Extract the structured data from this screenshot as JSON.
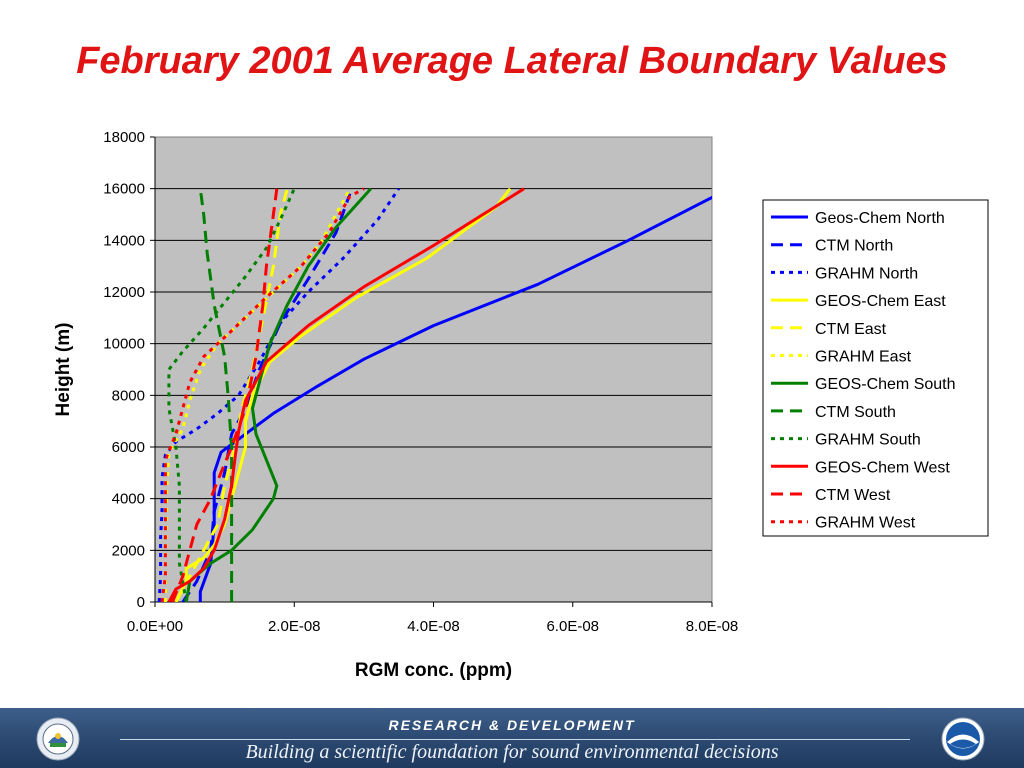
{
  "chart_data": {
    "type": "line",
    "title": "February 2001 Average Lateral Boundary Values",
    "xlabel": "RGM conc. (ppm)",
    "ylabel": "Height (m)",
    "xlim": [
      0,
      8e-08
    ],
    "ylim": [
      0,
      18000
    ],
    "x_ticks": [
      "0.0E+00",
      "2.0E-08",
      "4.0E-08",
      "6.0E-08",
      "8.0E-08"
    ],
    "y_ticks": [
      "0",
      "2000",
      "4000",
      "6000",
      "8000",
      "10000",
      "12000",
      "14000",
      "16000",
      "18000"
    ],
    "grid": "horizontal",
    "legend_position": "right",
    "series": [
      {
        "name": "Geos-Chem North",
        "color": "#0000ff",
        "dash": "solid",
        "points": [
          [
            6.5e-09,
            0
          ],
          [
            6.5e-09,
            400
          ],
          [
            8e-09,
            1500
          ],
          [
            8.5e-09,
            3000
          ],
          [
            8.5e-09,
            5000
          ],
          [
            9.5e-09,
            5800
          ],
          [
            1.3e-08,
            6500
          ],
          [
            1.7e-08,
            7300
          ],
          [
            2.3e-08,
            8300
          ],
          [
            3e-08,
            9400
          ],
          [
            4e-08,
            10700
          ],
          [
            5.5e-08,
            12300
          ],
          [
            6.8e-08,
            14000
          ],
          [
            8.1e-08,
            15800
          ]
        ]
      },
      {
        "name": "CTM North",
        "color": "#0000ff",
        "dash": "dash",
        "points": [
          [
            4e-09,
            0
          ],
          [
            6e-09,
            800
          ],
          [
            8e-09,
            2000
          ],
          [
            8.5e-09,
            3500
          ],
          [
            1e-08,
            5000
          ],
          [
            1.1e-08,
            6500
          ],
          [
            1.3e-08,
            7500
          ],
          [
            1.5e-08,
            9000
          ],
          [
            1.8e-08,
            10800
          ],
          [
            2.2e-08,
            12500
          ],
          [
            2.6e-08,
            14300
          ],
          [
            2.8e-08,
            15800
          ]
        ]
      },
      {
        "name": "GRAHM North",
        "color": "#0000ff",
        "dash": "dot",
        "points": [
          [
            6e-10,
            0
          ],
          [
            8e-10,
            1000
          ],
          [
            8e-10,
            2500
          ],
          [
            1e-09,
            3500
          ],
          [
            1e-09,
            4800
          ],
          [
            1.5e-09,
            5700
          ],
          [
            3e-09,
            6200
          ],
          [
            6e-09,
            6700
          ],
          [
            9e-09,
            7300
          ],
          [
            1.2e-08,
            8000
          ],
          [
            1.5e-08,
            9300
          ],
          [
            1.8e-08,
            10800
          ],
          [
            2.2e-08,
            12000
          ],
          [
            2.7e-08,
            13300
          ],
          [
            3.2e-08,
            14800
          ],
          [
            3.5e-08,
            16000
          ]
        ]
      },
      {
        "name": "GEOS-Chem East",
        "color": "#ffff00",
        "dash": "solid",
        "points": [
          [
            3e-09,
            0
          ],
          [
            4.5e-09,
            800
          ],
          [
            4.5e-09,
            1300
          ],
          [
            7e-09,
            1700
          ],
          [
            8.5e-09,
            2200
          ],
          [
            1e-08,
            3000
          ],
          [
            1.1e-08,
            4000
          ],
          [
            1.2e-08,
            5000
          ],
          [
            1.3e-08,
            6000
          ],
          [
            1.3e-08,
            7000
          ],
          [
            1.4e-08,
            8000
          ],
          [
            1.65e-08,
            9300
          ],
          [
            2.1e-08,
            10300
          ],
          [
            2.9e-08,
            11800
          ],
          [
            3.9e-08,
            13300
          ],
          [
            4.9e-08,
            15300
          ],
          [
            5.1e-08,
            16000
          ]
        ]
      },
      {
        "name": "CTM East",
        "color": "#ffff00",
        "dash": "dash",
        "points": [
          [
            3e-09,
            0
          ],
          [
            5e-09,
            1000
          ],
          [
            7e-09,
            2000
          ],
          [
            9e-09,
            3000
          ],
          [
            1e-08,
            4500
          ],
          [
            1.15e-08,
            6000
          ],
          [
            1.25e-08,
            7500
          ],
          [
            1.4e-08,
            9000
          ],
          [
            1.55e-08,
            11000
          ],
          [
            1.7e-08,
            13000
          ],
          [
            1.8e-08,
            15000
          ],
          [
            1.9e-08,
            16000
          ]
        ]
      },
      {
        "name": "GRAHM East",
        "color": "#ffff00",
        "dash": "dot",
        "points": [
          [
            1.5e-09,
            0
          ],
          [
            1.5e-09,
            1500
          ],
          [
            1.6e-09,
            3000
          ],
          [
            1.7e-09,
            4500
          ],
          [
            2e-09,
            5800
          ],
          [
            4e-09,
            6700
          ],
          [
            5e-09,
            7800
          ],
          [
            6.5e-09,
            9000
          ],
          [
            9e-09,
            10000
          ],
          [
            1.3e-08,
            11000
          ],
          [
            1.7e-08,
            12000
          ],
          [
            2.1e-08,
            13000
          ],
          [
            2.4e-08,
            14000
          ],
          [
            2.6e-08,
            15000
          ],
          [
            2.8e-08,
            16000
          ]
        ]
      },
      {
        "name": "GEOS-Chem South",
        "color": "#008000",
        "dash": "solid",
        "points": [
          [
            4.5e-09,
            0
          ],
          [
            5e-09,
            800
          ],
          [
            8e-09,
            1500
          ],
          [
            1.1e-08,
            2000
          ],
          [
            1.4e-08,
            2800
          ],
          [
            1.7e-08,
            4000
          ],
          [
            1.75e-08,
            4500
          ],
          [
            1.6e-08,
            5500
          ],
          [
            1.45e-08,
            6500
          ],
          [
            1.4e-08,
            7500
          ],
          [
            1.5e-08,
            8500
          ],
          [
            1.65e-08,
            10000
          ],
          [
            1.9e-08,
            11500
          ],
          [
            2.2e-08,
            13000
          ],
          [
            2.6e-08,
            14500
          ],
          [
            3.1e-08,
            16000
          ]
        ]
      },
      {
        "name": "CTM South",
        "color": "#008000",
        "dash": "dash",
        "points": [
          [
            1.1e-08,
            0
          ],
          [
            1.1e-08,
            2000
          ],
          [
            1.1e-08,
            4000
          ],
          [
            1.1e-08,
            6000
          ],
          [
            1.05e-08,
            8000
          ],
          [
            1e-08,
            9500
          ],
          [
            8.5e-09,
            11500
          ],
          [
            7.5e-09,
            13500
          ],
          [
            7e-09,
            15000
          ],
          [
            6.5e-09,
            16000
          ]
        ]
      },
      {
        "name": "GRAHM South",
        "color": "#008000",
        "dash": "dot",
        "points": [
          [
            4.5e-09,
            0
          ],
          [
            3.5e-09,
            1500
          ],
          [
            3.5e-09,
            3000
          ],
          [
            3.5e-09,
            4500
          ],
          [
            3e-09,
            6000
          ],
          [
            2e-09,
            7500
          ],
          [
            2e-09,
            9000
          ],
          [
            4e-09,
            9700
          ],
          [
            7e-09,
            10600
          ],
          [
            1e-08,
            11600
          ],
          [
            1.3e-08,
            12600
          ],
          [
            1.6e-08,
            13700
          ],
          [
            1.8e-08,
            14800
          ],
          [
            2e-08,
            16000
          ]
        ]
      },
      {
        "name": "GEOS-Chem West",
        "color": "#ff0000",
        "dash": "solid",
        "points": [
          [
            2e-09,
            0
          ],
          [
            3e-09,
            500
          ],
          [
            5e-09,
            800
          ],
          [
            7e-09,
            1300
          ],
          [
            8.5e-09,
            2000
          ],
          [
            1e-08,
            3200
          ],
          [
            1.1e-08,
            4500
          ],
          [
            1.15e-08,
            5600
          ],
          [
            1.2e-08,
            6600
          ],
          [
            1.3e-08,
            7800
          ],
          [
            1.6e-08,
            9300
          ],
          [
            2.2e-08,
            10700
          ],
          [
            3e-08,
            12200
          ],
          [
            4e-08,
            13800
          ],
          [
            5.3e-08,
            16000
          ]
        ]
      },
      {
        "name": "CTM West",
        "color": "#ff0000",
        "dash": "dash",
        "points": [
          [
            2.5e-09,
            0
          ],
          [
            4e-09,
            1000
          ],
          [
            5e-09,
            2000
          ],
          [
            6e-09,
            3000
          ],
          [
            8e-09,
            4000
          ],
          [
            9e-09,
            4700
          ],
          [
            1.1e-08,
            6000
          ],
          [
            1.3e-08,
            7500
          ],
          [
            1.45e-08,
            9500
          ],
          [
            1.55e-08,
            11500
          ],
          [
            1.6e-08,
            13000
          ],
          [
            1.7e-08,
            15000
          ],
          [
            1.75e-08,
            16000
          ]
        ]
      },
      {
        "name": "GRAHM West",
        "color": "#ff0000",
        "dash": "dot",
        "points": [
          [
            1e-09,
            0
          ],
          [
            1.5e-09,
            1000
          ],
          [
            1.5e-09,
            2500
          ],
          [
            1.5e-09,
            4000
          ],
          [
            1.5e-09,
            5500
          ],
          [
            3e-09,
            6500
          ],
          [
            4e-09,
            7500
          ],
          [
            5e-09,
            8500
          ],
          [
            7e-09,
            9500
          ],
          [
            1.1e-08,
            10500
          ],
          [
            1.6e-08,
            11800
          ],
          [
            2.1e-08,
            13000
          ],
          [
            2.5e-08,
            14300
          ],
          [
            2.8e-08,
            15700
          ],
          [
            3e-08,
            16000
          ]
        ]
      }
    ]
  },
  "footer": {
    "top": "RESEARCH & DEVELOPMENT",
    "bottom": "Building a scientific foundation for sound environmental decisions",
    "left_seal_icon": "epa-seal-icon",
    "right_seal_icon": "noaa-logo-icon"
  }
}
